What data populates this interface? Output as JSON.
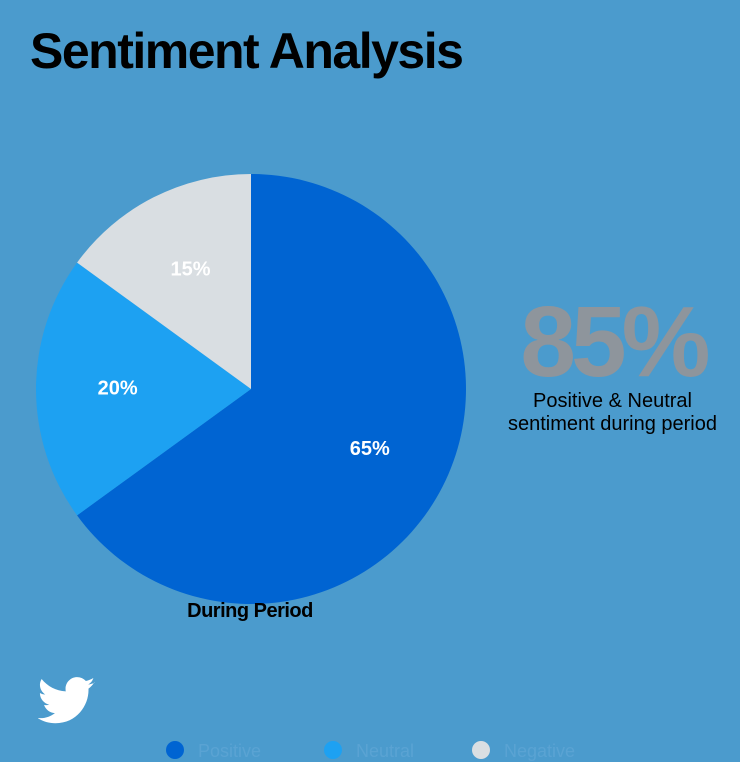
{
  "title": "Sentiment Analysis",
  "chart_data": {
    "type": "pie",
    "title": "",
    "caption": "During Period",
    "categories": [
      "Positive",
      "Neutral",
      "Negative"
    ],
    "values": [
      65,
      20,
      15
    ],
    "labels": [
      "65%",
      "20%",
      "15%"
    ],
    "colors": [
      "#0064d2",
      "#1da1f2",
      "#d9dee2"
    ],
    "legend_position": "bottom",
    "start_angle_deg": 0,
    "direction": "clockwise"
  },
  "stat": {
    "value": "85%",
    "caption_line1": "Positive & Neutral",
    "caption_line2": "sentiment during period"
  },
  "legend": [
    {
      "label": "Positive",
      "color": "#0064d2"
    },
    {
      "label": "Neutral",
      "color": "#1da1f2"
    },
    {
      "label": "Negative",
      "color": "#d9dee2"
    }
  ],
  "logo_icon": "twitter-bird-icon"
}
